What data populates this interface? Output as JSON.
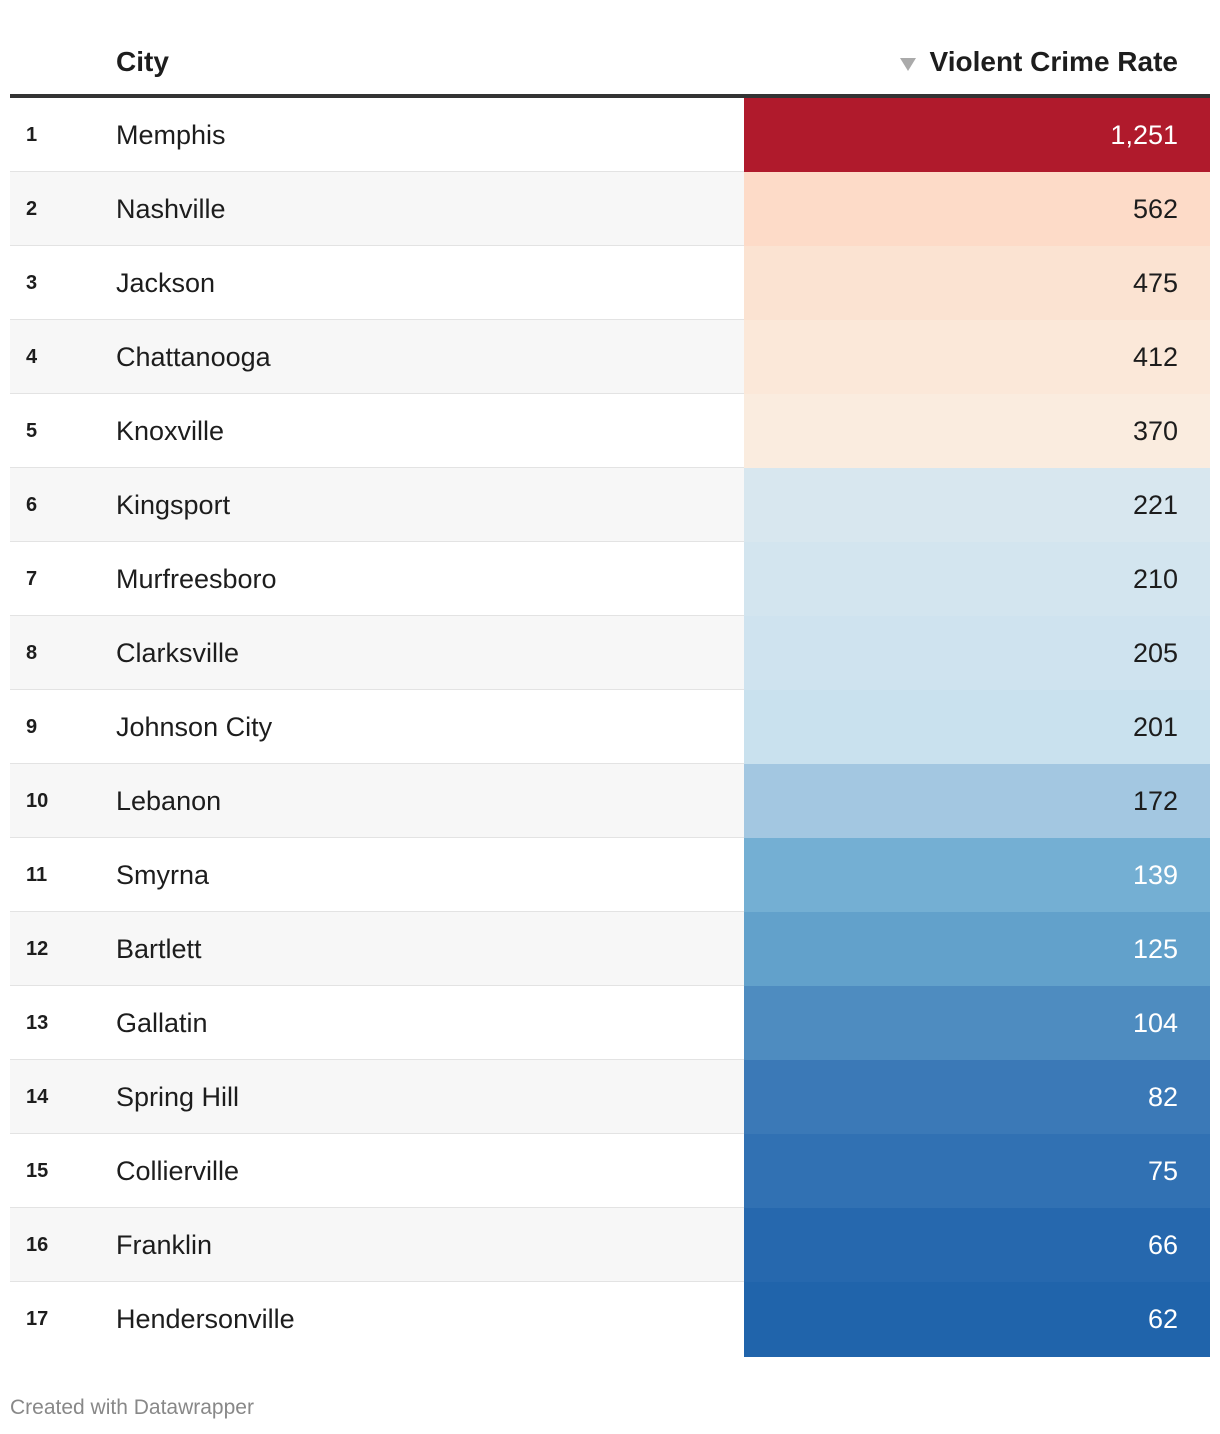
{
  "header": {
    "city_label": "City",
    "rate_label": "Violent Crime Rate"
  },
  "footer": {
    "credit": "Created with Datawrapper"
  },
  "chart_data": {
    "type": "table",
    "columns": [
      "",
      "City",
      "Violent Crime Rate"
    ],
    "sort": "Violent Crime Rate descending",
    "rows": [
      {
        "rank": "1",
        "city": "Memphis",
        "rate": 1251,
        "rate_label": "1,251",
        "bg": "#b01a2c",
        "fg": "#ffffff"
      },
      {
        "rank": "2",
        "city": "Nashville",
        "rate": 562,
        "rate_label": "562",
        "bg": "#fddbc8",
        "fg": "#1d1d1d"
      },
      {
        "rank": "3",
        "city": "Jackson",
        "rate": 475,
        "rate_label": "475",
        "bg": "#fbe3d2",
        "fg": "#1d1d1d"
      },
      {
        "rank": "4",
        "city": "Chattanooga",
        "rate": 412,
        "rate_label": "412",
        "bg": "#fbe8d9",
        "fg": "#1d1d1d"
      },
      {
        "rank": "5",
        "city": "Knoxville",
        "rate": 370,
        "rate_label": "370",
        "bg": "#faecdf",
        "fg": "#1d1d1d"
      },
      {
        "rank": "6",
        "city": "Kingsport",
        "rate": 221,
        "rate_label": "221",
        "bg": "#d8e7ef",
        "fg": "#1d1d1d"
      },
      {
        "rank": "7",
        "city": "Murfreesboro",
        "rate": 210,
        "rate_label": "210",
        "bg": "#d3e5ef",
        "fg": "#1d1d1d"
      },
      {
        "rank": "8",
        "city": "Clarksville",
        "rate": 205,
        "rate_label": "205",
        "bg": "#cfe3ef",
        "fg": "#1d1d1d"
      },
      {
        "rank": "9",
        "city": "Johnson City",
        "rate": 201,
        "rate_label": "201",
        "bg": "#c9e1ee",
        "fg": "#1d1d1d"
      },
      {
        "rank": "10",
        "city": "Lebanon",
        "rate": 172,
        "rate_label": "172",
        "bg": "#a3c7e1",
        "fg": "#1d1d1d"
      },
      {
        "rank": "11",
        "city": "Smyrna",
        "rate": 139,
        "rate_label": "139",
        "bg": "#74afd3",
        "fg": "#ffffff"
      },
      {
        "rank": "12",
        "city": "Bartlett",
        "rate": 125,
        "rate_label": "125",
        "bg": "#62a1cb",
        "fg": "#ffffff"
      },
      {
        "rank": "13",
        "city": "Gallatin",
        "rate": 104,
        "rate_label": "104",
        "bg": "#4e8cc0",
        "fg": "#ffffff"
      },
      {
        "rank": "14",
        "city": "Spring Hill",
        "rate": 82,
        "rate_label": "82",
        "bg": "#3b79b7",
        "fg": "#ffffff"
      },
      {
        "rank": "15",
        "city": "Collierville",
        "rate": 75,
        "rate_label": "75",
        "bg": "#3171b3",
        "fg": "#ffffff"
      },
      {
        "rank": "16",
        "city": "Franklin",
        "rate": 66,
        "rate_label": "66",
        "bg": "#2668ae",
        "fg": "#ffffff"
      },
      {
        "rank": "17",
        "city": "Hendersonville",
        "rate": 62,
        "rate_label": "62",
        "bg": "#2064ab",
        "fg": "#ffffff"
      }
    ]
  }
}
